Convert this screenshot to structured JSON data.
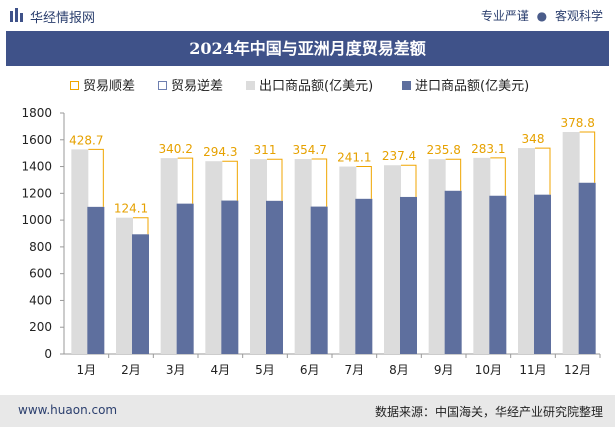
{
  "header": {
    "brand": "华经情报网",
    "tagline_left": "专业严谨",
    "tagline_sep": "●",
    "tagline_right": "客观科学"
  },
  "title": "2024年中国与亚洲月度贸易差额",
  "legend": {
    "surplus": "贸易顺差",
    "deficit": "贸易逆差",
    "exports": "出口商品额(亿美元)",
    "imports": "进口商品额(亿美元)"
  },
  "footer": {
    "website": "www.huaon.com",
    "source": "数据来源：中国海关，华经产业研究院整理"
  },
  "colors": {
    "title_bg": "#3f5289",
    "export_bar": "#dcdcdc",
    "import_bar": "#5e6f9e",
    "surplus_marker": "#f0a500",
    "surplus_label": "#e6a100"
  },
  "chart_data": {
    "type": "bar",
    "categories": [
      "1月",
      "2月",
      "3月",
      "4月",
      "5月",
      "6月",
      "7月",
      "8月",
      "9月",
      "10月",
      "11月",
      "12月"
    ],
    "series": [
      {
        "name": "出口商品额(亿美元)",
        "values": [
          1528,
          1018,
          1463,
          1440,
          1455,
          1456,
          1400,
          1410,
          1455,
          1465,
          1538,
          1658
        ]
      },
      {
        "name": "进口商品额(亿美元)",
        "values": [
          1099,
          894,
          1123,
          1146,
          1144,
          1101,
          1159,
          1173,
          1219,
          1182,
          1190,
          1279
        ]
      }
    ],
    "surplus_labels": [
      "428.7",
      "124.1",
      "340.2",
      "294.3",
      "311",
      "354.7",
      "241.1",
      "237.4",
      "235.8",
      "283.1",
      "348",
      "378.8"
    ],
    "ylim": [
      0,
      1800
    ],
    "yticks": [
      0,
      200,
      400,
      600,
      800,
      1000,
      1200,
      1400,
      1600,
      1800
    ],
    "grid": false,
    "legend_position": "top"
  }
}
